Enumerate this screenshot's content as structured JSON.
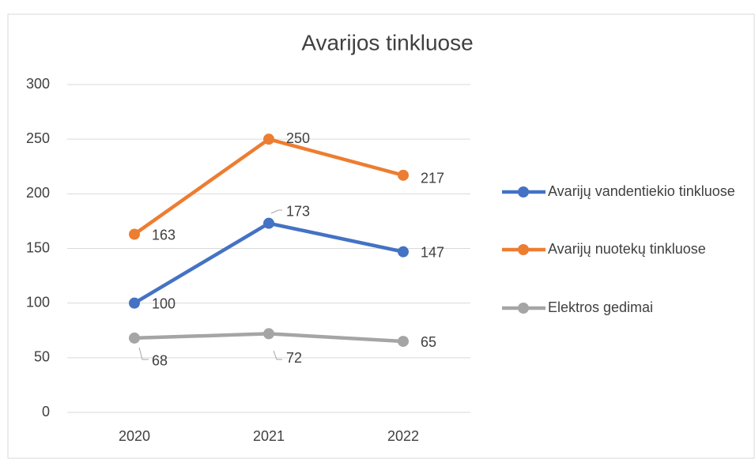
{
  "chart_data": {
    "type": "line",
    "title": "Avarijos tinkluose",
    "categories": [
      "2020",
      "2021",
      "2022"
    ],
    "series": [
      {
        "name": "Avarijų vandentiekio tinkluose",
        "color": "#4472c4",
        "values": [
          100,
          173,
          147
        ]
      },
      {
        "name": "Avarijų nuotekų tinkluose",
        "color": "#ed7d31",
        "values": [
          163,
          250,
          217
        ]
      },
      {
        "name": "Elektros gedimai",
        "color": "#a5a5a5",
        "values": [
          68,
          72,
          65
        ]
      }
    ],
    "ylim": [
      0,
      300
    ],
    "yticks": [
      0,
      50,
      100,
      150,
      200,
      250,
      300
    ],
    "grid": true,
    "legend": "right"
  }
}
